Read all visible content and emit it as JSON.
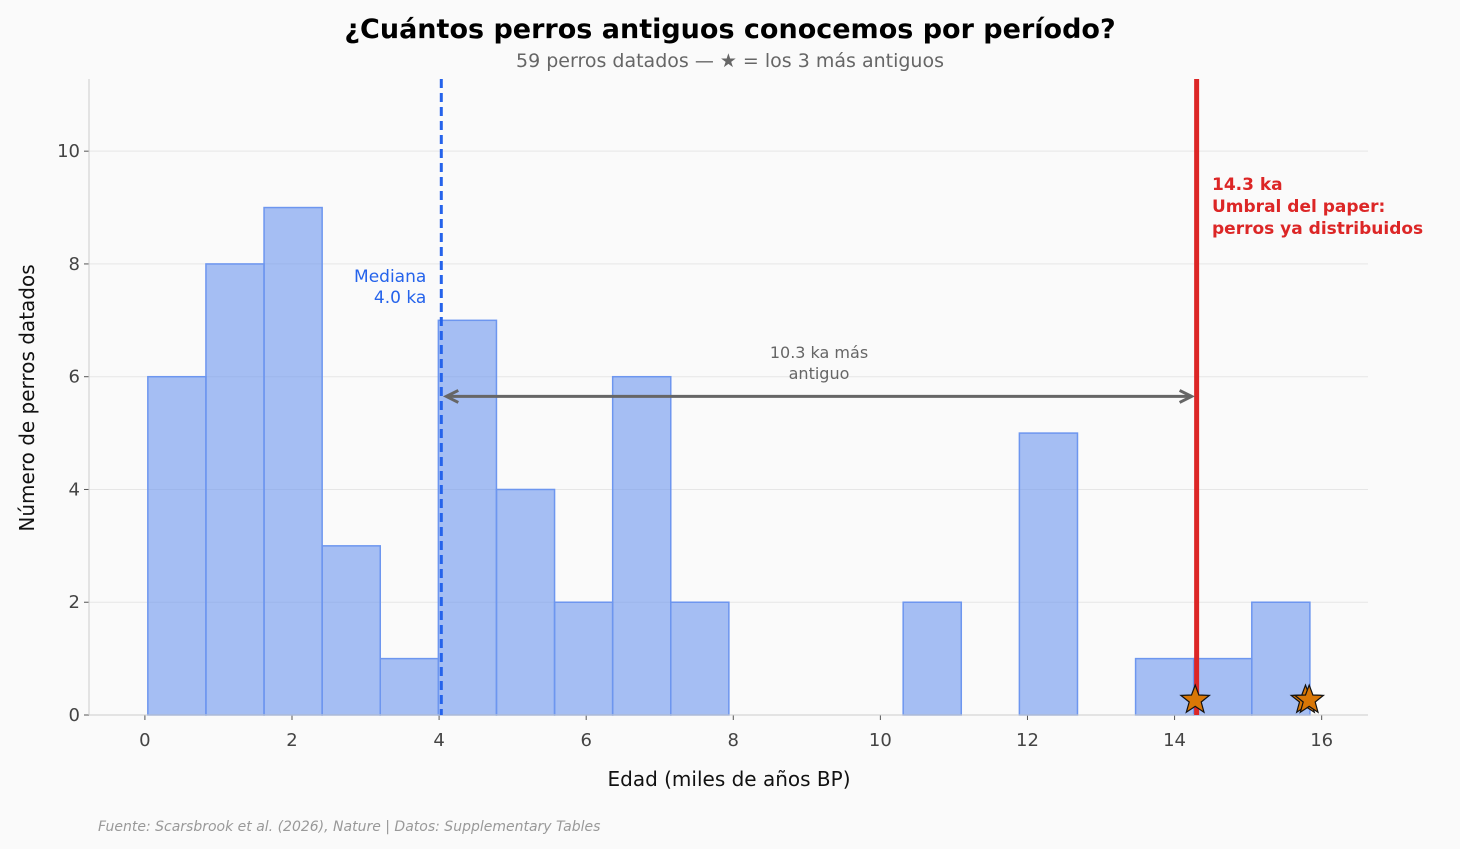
{
  "chart_data": {
    "type": "bar",
    "title": "¿Cuántos perros antiguos conocemos por período?",
    "subtitle": "59 perros datados — ★ = los 3 más antiguos",
    "xlabel": "Edad (miles de años BP)",
    "ylabel": "Número de perros datados",
    "xlim": [
      -0.76,
      16.63
    ],
    "ylim": [
      0,
      11.28
    ],
    "xticks": [
      0,
      2,
      4,
      6,
      8,
      10,
      12,
      14,
      16
    ],
    "yticks": [
      0,
      2,
      4,
      6,
      8,
      10
    ],
    "grid": "horizontal",
    "bin_edges": [
      0.04,
      0.83,
      1.62,
      2.41,
      3.2,
      3.99,
      4.78,
      5.57,
      6.36,
      7.15,
      7.94,
      8.73,
      9.52,
      10.31,
      11.1,
      11.89,
      12.68,
      13.47,
      14.26,
      15.05,
      15.84
    ],
    "counts": [
      6,
      8,
      9,
      3,
      1,
      7,
      4,
      2,
      6,
      2,
      0,
      0,
      0,
      2,
      0,
      5,
      0,
      1,
      1,
      2
    ],
    "bar_color": "#6d96ef",
    "oldest_markers": {
      "x": [
        14.28,
        15.78,
        15.83
      ],
      "y": 0.3,
      "color": "#d97706"
    },
    "median": {
      "value": 4.03,
      "label_line1": "Mediana",
      "label_line2": "4.0 ka",
      "color": "#2563eb"
    },
    "threshold": {
      "value": 14.3,
      "label_lines": [
        "14.3 ka",
        "Umbral del paper:",
        "perros ya distribuidos"
      ],
      "color": "#dc2626"
    },
    "span_arrow": {
      "from": 4.03,
      "to": 14.3,
      "y": 5.65,
      "label_lines": [
        "10.3 ka más",
        "antiguo"
      ],
      "color": "#666666"
    },
    "source": "Fuente: Scarsbrook et al. (2026), Nature | Datos: Supplementary Tables"
  }
}
